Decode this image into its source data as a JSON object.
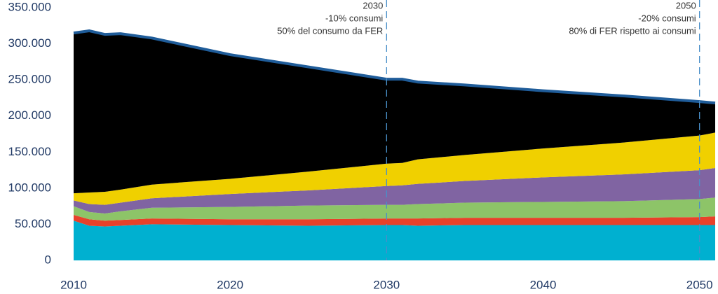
{
  "chart_data": {
    "type": "stacked_area",
    "x": [
      2010,
      2011,
      2012,
      2013,
      2015,
      2020,
      2025,
      2030,
      2031,
      2032,
      2035,
      2040,
      2045,
      2050,
      2051
    ],
    "series": [
      {
        "color": "#00b0d0",
        "values": [
          55000,
          48000,
          47000,
          48000,
          50000,
          49000,
          48000,
          49000,
          49000,
          48000,
          49000,
          49000,
          49000,
          49000,
          49000
        ]
      },
      {
        "color": "#e8412a",
        "values": [
          8000,
          9000,
          8000,
          8000,
          8000,
          8000,
          9000,
          9000,
          9000,
          10000,
          10000,
          10000,
          10000,
          11000,
          12000
        ]
      },
      {
        "color": "#8dc468",
        "values": [
          12000,
          10000,
          10000,
          12000,
          15000,
          17000,
          19000,
          19000,
          19000,
          20000,
          21000,
          22000,
          23000,
          25000,
          26000
        ]
      },
      {
        "color": "#8064a2",
        "values": [
          8000,
          11000,
          12000,
          12000,
          13000,
          18000,
          21000,
          26000,
          27000,
          28000,
          30000,
          34000,
          37000,
          40000,
          41000
        ]
      },
      {
        "color": "#f0d000",
        "values": [
          10000,
          16000,
          18000,
          18000,
          19000,
          21000,
          26000,
          31000,
          31000,
          34000,
          36000,
          40000,
          44000,
          48000,
          49000
        ]
      },
      {
        "color": "#000000",
        "values": [
          222000,
          224000,
          218000,
          216000,
          203000,
          172000,
          145000,
          117000,
          116000,
          107000,
          97000,
          80000,
          65000,
          47000,
          41000
        ]
      }
    ],
    "outline_color": "#1f5c99",
    "xlim": [
      2010,
      2051
    ],
    "xticks": [
      2010,
      2020,
      2030,
      2040,
      2050
    ],
    "ylim": [
      0,
      350000
    ],
    "yticks": [
      {
        "value": 0,
        "label": "0"
      },
      {
        "value": 50000,
        "label": "50.000"
      },
      {
        "value": 100000,
        "label": "100.000"
      },
      {
        "value": 150000,
        "label": "150.000"
      },
      {
        "value": 200000,
        "label": "200.000"
      },
      {
        "value": 250000,
        "label": "250.000"
      },
      {
        "value": 300000,
        "label": "300.000"
      },
      {
        "value": 350000,
        "label": "350.000"
      }
    ],
    "annotations": [
      {
        "x": 2030,
        "lines": [
          "2030",
          "-10% consumi",
          "50% del consumo da FER"
        ]
      },
      {
        "x": 2050,
        "lines": [
          "2050",
          "-20% consumi",
          "80% di FER rispetto ai consumi"
        ]
      }
    ],
    "annotation_color": "#4a8fc8"
  }
}
